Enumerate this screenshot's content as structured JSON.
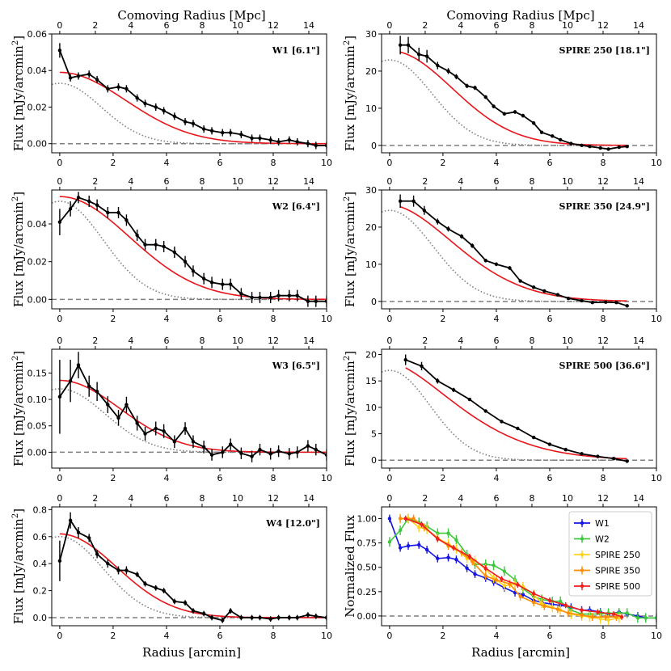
{
  "top_xlabel": "Comoving Radius [Mpc]",
  "bottom_xlabel": "Radius [arcmin]",
  "ylabel_flux_prefix": "Flux [mJy/arcmin",
  "ylabel_flux_sup": "2",
  "ylabel_flux_suffix": "]",
  "ylabel_norm": "Normalized Flux",
  "colors": {
    "data": "#000000",
    "model": "#e8141b",
    "psf": "#7f7f7f",
    "zero": "#7f7f7f"
  },
  "chart_data": [
    {
      "id": "W1",
      "type": "line",
      "title": "W1 [6.1\"]",
      "xlim": [
        -0.3,
        10
      ],
      "ylim": [
        -0.005,
        0.06
      ],
      "yticks": [
        "0.00",
        "0.02",
        "0.04",
        "0.06"
      ],
      "ytick_values": [
        0,
        0.02,
        0.04,
        0.06
      ],
      "data_x": [
        0,
        0.4,
        0.7,
        1.1,
        1.4,
        1.8,
        2.2,
        2.5,
        2.9,
        3.2,
        3.6,
        3.9,
        4.3,
        4.7,
        5.0,
        5.4,
        5.7,
        6.1,
        6.4,
        6.8,
        7.2,
        7.5,
        7.9,
        8.2,
        8.6,
        8.9,
        9.3,
        9.6,
        10
      ],
      "data_y": [
        0.051,
        0.036,
        0.037,
        0.038,
        0.035,
        0.03,
        0.031,
        0.03,
        0.025,
        0.022,
        0.02,
        0.018,
        0.015,
        0.012,
        0.011,
        0.008,
        0.007,
        0.006,
        0.006,
        0.005,
        0.003,
        0.003,
        0.002,
        0.001,
        0.002,
        0.001,
        0.0,
        -0.001,
        -0.001
      ],
      "err": [
        0.004,
        0.002,
        0.002,
        0.002,
        0.002,
        0.002,
        0.002,
        0.002,
        0.002,
        0.002,
        0.002,
        0.002,
        0.002,
        0.002,
        0.002,
        0.002,
        0.002,
        0.002,
        0.002,
        0.002,
        0.002,
        0.002,
        0.002,
        0.002,
        0.002,
        0.002,
        0.002,
        0.002,
        0.002
      ],
      "model": {
        "amp": 0.039,
        "sigma": 3.5,
        "power": 2.0
      },
      "psf": {
        "amp": 0.033,
        "sigma": 2.2
      }
    },
    {
      "id": "SPIRE250",
      "type": "line",
      "title": "SPIRE 250 [18.1\"]",
      "xlim": [
        -0.3,
        10
      ],
      "ylim": [
        -2,
        30
      ],
      "yticks": [
        "0",
        "10",
        "20",
        "30"
      ],
      "ytick_values": [
        0,
        10,
        20,
        30
      ],
      "data_x": [
        0.4,
        0.7,
        1.1,
        1.4,
        1.8,
        2.2,
        2.5,
        2.9,
        3.2,
        3.6,
        3.9,
        4.3,
        4.7,
        5.0,
        5.4,
        5.7,
        6.1,
        6.4,
        6.8,
        7.2,
        7.5,
        7.9,
        8.2,
        8.6,
        8.9
      ],
      "data_y": [
        27.0,
        27.0,
        24.5,
        24.0,
        21.5,
        20.0,
        18.5,
        16.0,
        15.5,
        13.0,
        10.5,
        8.5,
        9.0,
        8.0,
        6.0,
        3.5,
        2.5,
        1.5,
        0.5,
        0.0,
        -0.3,
        -0.7,
        -1.0,
        -0.5,
        -0.3
      ],
      "err": [
        2.5,
        2.2,
        1.8,
        1.7,
        1.0,
        0.8,
        0.7,
        0.6,
        0.6,
        0.5,
        0.5,
        0.5,
        0.5,
        0.5,
        0.5,
        0.4,
        0.4,
        0.4,
        0.4,
        0.4,
        0.4,
        0.4,
        0.4,
        0.4,
        0.4
      ],
      "model": {
        "amp": 25.5,
        "sigma": 3.3,
        "power": 2.0
      },
      "psf": {
        "amp": 23.0,
        "sigma": 2.25
      }
    },
    {
      "id": "W2",
      "type": "line",
      "title": "W2 [6.4\"]",
      "xlim": [
        -0.3,
        10
      ],
      "ylim": [
        -0.005,
        0.058
      ],
      "yticks": [
        "0.00",
        "0.02",
        "0.04"
      ],
      "ytick_values": [
        0,
        0.02,
        0.04
      ],
      "data_x": [
        0,
        0.4,
        0.7,
        1.1,
        1.4,
        1.8,
        2.2,
        2.5,
        2.9,
        3.2,
        3.6,
        3.9,
        4.3,
        4.7,
        5.0,
        5.4,
        5.7,
        6.1,
        6.4,
        6.8,
        7.2,
        7.5,
        7.9,
        8.2,
        8.6,
        8.9,
        9.3,
        9.6,
        10
      ],
      "data_y": [
        0.041,
        0.048,
        0.054,
        0.052,
        0.05,
        0.046,
        0.046,
        0.042,
        0.034,
        0.029,
        0.029,
        0.028,
        0.025,
        0.02,
        0.015,
        0.011,
        0.009,
        0.008,
        0.008,
        0.003,
        0.001,
        0.001,
        0.001,
        0.002,
        0.002,
        0.002,
        -0.001,
        -0.001,
        -0.001
      ],
      "err": [
        0.007,
        0.004,
        0.003,
        0.003,
        0.003,
        0.003,
        0.003,
        0.003,
        0.003,
        0.003,
        0.003,
        0.003,
        0.003,
        0.003,
        0.003,
        0.003,
        0.003,
        0.003,
        0.003,
        0.003,
        0.003,
        0.003,
        0.003,
        0.003,
        0.003,
        0.003,
        0.003,
        0.003,
        0.003
      ],
      "model": {
        "amp": 0.0545,
        "sigma": 3.7,
        "power": 2.0
      },
      "psf": {
        "amp": 0.052,
        "sigma": 2.3
      }
    },
    {
      "id": "SPIRE350",
      "type": "line",
      "title": "SPIRE 350 [24.9\"]",
      "xlim": [
        -0.3,
        10
      ],
      "ylim": [
        -2,
        30
      ],
      "yticks": [
        "0",
        "10",
        "20",
        "30"
      ],
      "ytick_values": [
        0,
        10,
        20,
        30
      ],
      "data_x": [
        0.4,
        0.9,
        1.3,
        1.8,
        2.2,
        2.7,
        3.1,
        3.6,
        4.0,
        4.5,
        4.9,
        5.4,
        5.8,
        6.3,
        6.7,
        7.2,
        7.6,
        8.1,
        8.5,
        8.9
      ],
      "data_y": [
        27.0,
        27.0,
        24.5,
        21.5,
        19.5,
        17.5,
        15.0,
        11.0,
        10.0,
        9.0,
        5.5,
        3.8,
        2.8,
        1.8,
        0.8,
        0.2,
        -0.3,
        -0.2,
        -0.3,
        -1.2
      ],
      "err": [
        1.8,
        1.5,
        1.2,
        0.8,
        0.7,
        0.6,
        0.6,
        0.5,
        0.5,
        0.5,
        0.4,
        0.4,
        0.4,
        0.4,
        0.4,
        0.4,
        0.4,
        0.4,
        0.4,
        0.4
      ],
      "model": {
        "amp": 26.0,
        "sigma": 3.5,
        "power": 1.8
      },
      "psf": {
        "amp": 24.5,
        "sigma": 2.3
      }
    },
    {
      "id": "W3",
      "type": "line",
      "title": "W3 [6.5\"]",
      "xlim": [
        -0.3,
        10
      ],
      "ylim": [
        -0.03,
        0.195
      ],
      "yticks": [
        "0.00",
        "0.05",
        "0.10",
        "0.15"
      ],
      "ytick_values": [
        0,
        0.05,
        0.1,
        0.15
      ],
      "data_x": [
        0,
        0.4,
        0.7,
        1.1,
        1.4,
        1.8,
        2.2,
        2.5,
        2.9,
        3.2,
        3.6,
        3.9,
        4.3,
        4.7,
        5.0,
        5.4,
        5.7,
        6.1,
        6.4,
        6.8,
        7.2,
        7.5,
        7.9,
        8.2,
        8.6,
        8.9,
        9.3,
        9.6,
        10
      ],
      "data_y": [
        0.105,
        0.135,
        0.165,
        0.125,
        0.115,
        0.09,
        0.065,
        0.09,
        0.055,
        0.035,
        0.045,
        0.04,
        0.02,
        0.045,
        0.02,
        0.01,
        -0.005,
        0.0,
        0.015,
        -0.002,
        -0.008,
        0.005,
        -0.003,
        0.002,
        -0.003,
        0.0,
        0.012,
        0.005,
        -0.005
      ],
      "err": [
        0.07,
        0.04,
        0.025,
        0.02,
        0.018,
        0.016,
        0.015,
        0.015,
        0.014,
        0.013,
        0.013,
        0.013,
        0.012,
        0.012,
        0.012,
        0.012,
        0.011,
        0.011,
        0.011,
        0.011,
        0.011,
        0.011,
        0.011,
        0.011,
        0.011,
        0.011,
        0.011,
        0.011,
        0.011
      ],
      "model": {
        "amp": 0.136,
        "sigma": 3.2,
        "power": 2.0
      },
      "psf": {
        "amp": 0.12,
        "sigma": 2.4
      }
    },
    {
      "id": "SPIRE500",
      "type": "line",
      "title": "SPIRE 500 [36.6\"]",
      "xlim": [
        -0.3,
        10
      ],
      "ylim": [
        -1.5,
        21
      ],
      "yticks": [
        "0",
        "5",
        "10",
        "15",
        "20"
      ],
      "ytick_values": [
        0,
        5,
        10,
        15,
        20
      ],
      "data_x": [
        0.6,
        1.2,
        1.8,
        2.4,
        3.0,
        3.6,
        4.2,
        4.8,
        5.4,
        6.0,
        6.6,
        7.2,
        7.8,
        8.4,
        8.9
      ],
      "data_y": [
        19.0,
        17.8,
        15.0,
        13.3,
        11.5,
        9.3,
        7.3,
        6.0,
        4.3,
        3.0,
        2.0,
        1.2,
        0.7,
        0.3,
        -0.2
      ],
      "err": [
        1.0,
        0.8,
        0.5,
        0.4,
        0.3,
        0.3,
        0.3,
        0.3,
        0.3,
        0.3,
        0.3,
        0.3,
        0.3,
        0.3,
        0.3
      ],
      "model": {
        "amp": 18.5,
        "sigma": 3.6,
        "power": 1.6
      },
      "psf": {
        "amp": 17.0,
        "sigma": 2.15
      }
    },
    {
      "id": "W4",
      "type": "line",
      "title": "W4 [12.0\"]",
      "xlim": [
        -0.3,
        10
      ],
      "ylim": [
        -0.06,
        0.82
      ],
      "yticks": [
        "0.0",
        "0.2",
        "0.4",
        "0.6",
        "0.8"
      ],
      "ytick_values": [
        0,
        0.2,
        0.4,
        0.6,
        0.8
      ],
      "data_x": [
        0,
        0.4,
        0.7,
        1.1,
        1.4,
        1.8,
        2.2,
        2.5,
        2.9,
        3.2,
        3.6,
        3.9,
        4.3,
        4.7,
        5.0,
        5.4,
        5.7,
        6.1,
        6.4,
        6.8,
        7.2,
        7.5,
        7.9,
        8.2,
        8.6,
        8.9,
        9.3,
        9.6,
        10
      ],
      "data_y": [
        0.42,
        0.72,
        0.63,
        0.59,
        0.47,
        0.4,
        0.35,
        0.35,
        0.32,
        0.25,
        0.22,
        0.2,
        0.12,
        0.11,
        0.05,
        0.03,
        0.0,
        -0.02,
        0.05,
        0.0,
        0.0,
        0.0,
        -0.01,
        0.0,
        0.0,
        0.0,
        0.02,
        0.01,
        0.0
      ],
      "err": [
        0.15,
        0.06,
        0.04,
        0.03,
        0.03,
        0.03,
        0.03,
        0.03,
        0.02,
        0.02,
        0.02,
        0.02,
        0.02,
        0.02,
        0.02,
        0.02,
        0.02,
        0.02,
        0.02,
        0.02,
        0.02,
        0.02,
        0.02,
        0.02,
        0.02,
        0.02,
        0.02,
        0.02,
        0.02
      ],
      "model": {
        "amp": 0.62,
        "sigma": 3.0,
        "power": 2.0
      },
      "psf": {
        "amp": 0.6,
        "sigma": 2.3
      }
    },
    {
      "id": "Normalized",
      "type": "line",
      "xlim": [
        -0.3,
        10
      ],
      "ylim": [
        -0.1,
        1.12
      ],
      "yticks": [
        "0.00",
        "0.25",
        "0.50",
        "0.75",
        "1.00"
      ],
      "ytick_values": [
        0,
        0.25,
        0.5,
        0.75,
        1.0
      ],
      "series": [
        {
          "name": "W1",
          "color": "#1414e6",
          "x": [
            0,
            0.4,
            0.7,
            1.1,
            1.4,
            1.8,
            2.2,
            2.5,
            2.9,
            3.2,
            3.6,
            3.9,
            4.3,
            4.7,
            5.0,
            5.4,
            5.7,
            6.1,
            6.4,
            6.8,
            7.2,
            7.5,
            7.9,
            8.2,
            8.6,
            8.9,
            9.3,
            9.6,
            10
          ],
          "y": [
            1.0,
            0.7,
            0.72,
            0.73,
            0.68,
            0.59,
            0.6,
            0.58,
            0.49,
            0.43,
            0.39,
            0.35,
            0.29,
            0.24,
            0.22,
            0.16,
            0.14,
            0.12,
            0.11,
            0.09,
            0.06,
            0.06,
            0.04,
            0.02,
            0.04,
            0.02,
            0.0,
            -0.02,
            -0.02
          ],
          "e": 0.04
        },
        {
          "name": "W2",
          "color": "#3cc83c",
          "x": [
            0,
            0.4,
            0.7,
            1.1,
            1.4,
            1.8,
            2.2,
            2.5,
            2.9,
            3.2,
            3.6,
            3.9,
            4.3,
            4.7,
            5.0,
            5.4,
            5.7,
            6.1,
            6.4,
            6.8,
            7.2,
            7.5,
            7.9,
            8.2,
            8.6,
            8.9,
            9.3,
            9.6,
            10
          ],
          "y": [
            0.76,
            0.88,
            1.0,
            0.96,
            0.92,
            0.85,
            0.85,
            0.78,
            0.63,
            0.53,
            0.53,
            0.52,
            0.46,
            0.37,
            0.28,
            0.2,
            0.17,
            0.15,
            0.15,
            0.06,
            0.02,
            0.02,
            0.02,
            0.03,
            0.03,
            0.03,
            -0.02,
            -0.02,
            -0.02
          ],
          "e": 0.05
        },
        {
          "name": "SPIRE 250",
          "color": "#ffd21e",
          "x": [
            0.4,
            0.7,
            1.1,
            1.4,
            1.8,
            2.2,
            2.5,
            2.9,
            3.2,
            3.6,
            3.9,
            4.3,
            4.7,
            5.0,
            5.4,
            5.7,
            6.1,
            6.4,
            6.8,
            7.2,
            7.5,
            7.9,
            8.2,
            8.6
          ],
          "y": [
            1.0,
            1.0,
            0.91,
            0.89,
            0.8,
            0.74,
            0.69,
            0.59,
            0.57,
            0.48,
            0.39,
            0.31,
            0.33,
            0.3,
            0.22,
            0.13,
            0.09,
            0.06,
            0.02,
            0.0,
            -0.01,
            -0.03,
            -0.04,
            -0.02
          ],
          "e": 0.05
        },
        {
          "name": "SPIRE 350",
          "color": "#ff8c00",
          "x": [
            0.4,
            0.9,
            1.3,
            1.8,
            2.2,
            2.7,
            3.1,
            3.6,
            4.0,
            4.5,
            4.9,
            5.4,
            5.8,
            6.3,
            6.7,
            7.2,
            7.6,
            8.1,
            8.5
          ],
          "y": [
            1.0,
            1.0,
            0.91,
            0.8,
            0.72,
            0.65,
            0.56,
            0.41,
            0.37,
            0.33,
            0.2,
            0.14,
            0.1,
            0.07,
            0.03,
            0.01,
            -0.01,
            -0.01,
            -0.01
          ],
          "e": 0.04
        },
        {
          "name": "SPIRE 500",
          "color": "#f01e1e",
          "x": [
            0.6,
            1.2,
            1.8,
            2.4,
            3.0,
            3.6,
            4.2,
            4.8,
            5.4,
            6.0,
            6.6,
            7.2,
            7.8,
            8.4,
            8.7
          ],
          "y": [
            1.0,
            0.94,
            0.79,
            0.7,
            0.61,
            0.49,
            0.38,
            0.32,
            0.23,
            0.16,
            0.11,
            0.06,
            0.04,
            0.02,
            -0.01
          ],
          "e": 0.03
        }
      ]
    }
  ],
  "comoving_ticks": [
    "0",
    "2",
    "4",
    "6",
    "8",
    "10",
    "12",
    "14"
  ],
  "comoving_tick_values": [
    0,
    2,
    4,
    6,
    8,
    10,
    12,
    14
  ],
  "comoving_range": [
    -0.45,
    15.0
  ],
  "radius_ticks": [
    "0",
    "2",
    "4",
    "6",
    "8",
    "10"
  ],
  "radius_tick_values": [
    0,
    2,
    4,
    6,
    8,
    10
  ]
}
